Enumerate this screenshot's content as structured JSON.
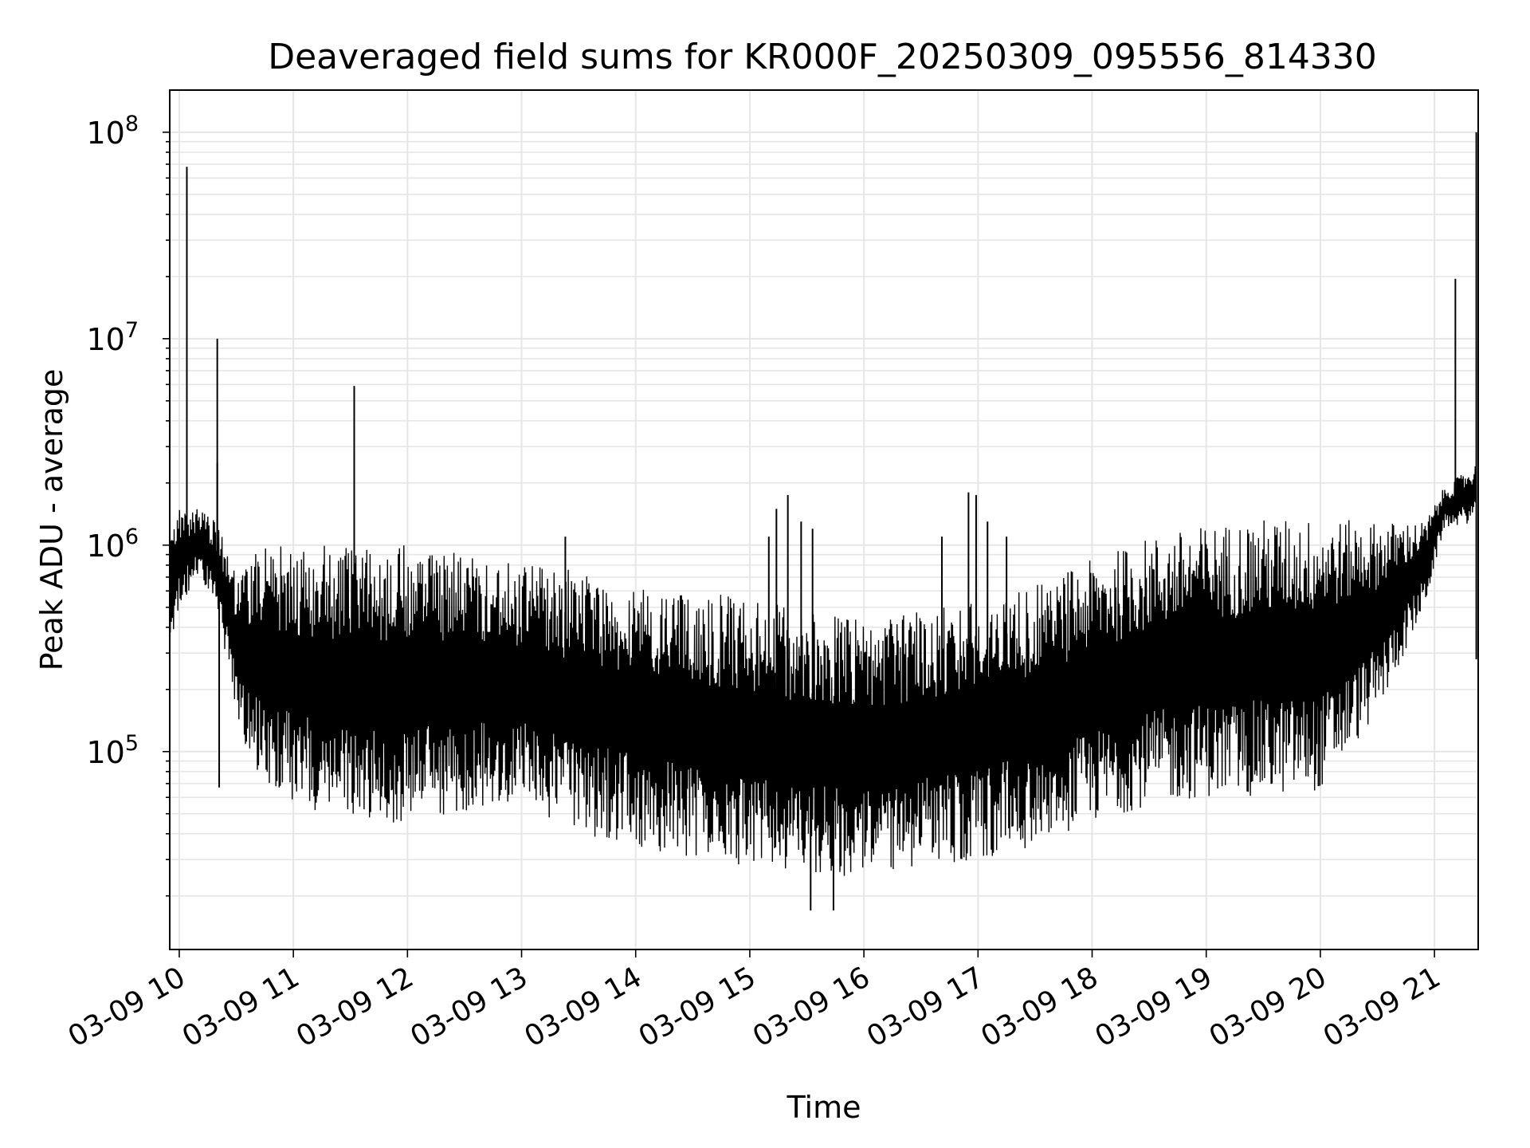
{
  "chart_data": {
    "type": "line",
    "title": "Deaveraged field sums for KR000F_20250309_095556_814330",
    "xlabel": "Time",
    "ylabel": "Peak ADU - average",
    "yscale": "log",
    "ylim": [
      11000,
      160000000
    ],
    "xlim": [
      "2025-03-09 09:55",
      "2025-03-09 21:23"
    ],
    "grid": true,
    "x_ticks": [
      {
        "t": "2025-03-09 10:00",
        "label": "03-09 10"
      },
      {
        "t": "2025-03-09 11:00",
        "label": "03-09 11"
      },
      {
        "t": "2025-03-09 12:00",
        "label": "03-09 12"
      },
      {
        "t": "2025-03-09 13:00",
        "label": "03-09 13"
      },
      {
        "t": "2025-03-09 14:00",
        "label": "03-09 14"
      },
      {
        "t": "2025-03-09 15:00",
        "label": "03-09 15"
      },
      {
        "t": "2025-03-09 16:00",
        "label": "03-09 16"
      },
      {
        "t": "2025-03-09 17:00",
        "label": "03-09 17"
      },
      {
        "t": "2025-03-09 18:00",
        "label": "03-09 18"
      },
      {
        "t": "2025-03-09 19:00",
        "label": "03-09 19"
      },
      {
        "t": "2025-03-09 20:00",
        "label": "03-09 20"
      },
      {
        "t": "2025-03-09 21:00",
        "label": "03-09 21"
      }
    ],
    "y_ticks": [
      {
        "value": 100000,
        "base": "10",
        "exp": "5"
      },
      {
        "value": 1000000,
        "base": "10",
        "exp": "6"
      },
      {
        "value": 10000000,
        "base": "10",
        "exp": "7"
      },
      {
        "value": 100000000,
        "base": "10",
        "exp": "8"
      }
    ],
    "series": [
      {
        "color": "#000000",
        "envelope": [
          {
            "t": "2025-03-09 09:55",
            "low": 300000,
            "high": 1300000
          },
          {
            "t": "2025-03-09 10:00",
            "low": 500000,
            "high": 1500000
          },
          {
            "t": "2025-03-09 10:10",
            "low": 700000,
            "high": 1500000
          },
          {
            "t": "2025-03-09 10:20",
            "low": 500000,
            "high": 1300000
          },
          {
            "t": "2025-03-09 10:30",
            "low": 150000,
            "high": 700000
          },
          {
            "t": "2025-03-09 10:40",
            "low": 75000,
            "high": 1000000
          },
          {
            "t": "2025-03-09 11:00",
            "low": 55000,
            "high": 1000000
          },
          {
            "t": "2025-03-09 11:30",
            "low": 45000,
            "high": 1000000
          },
          {
            "t": "2025-03-09 12:00",
            "low": 45000,
            "high": 1000000
          },
          {
            "t": "2025-03-09 12:30",
            "low": 50000,
            "high": 900000
          },
          {
            "t": "2025-03-09 13:00",
            "low": 55000,
            "high": 850000
          },
          {
            "t": "2025-03-09 13:30",
            "low": 40000,
            "high": 750000
          },
          {
            "t": "2025-03-09 14:00",
            "low": 35000,
            "high": 650000
          },
          {
            "t": "2025-03-09 14:30",
            "low": 30000,
            "high": 600000
          },
          {
            "t": "2025-03-09 15:00",
            "low": 27000,
            "high": 550000
          },
          {
            "t": "2025-03-09 15:30",
            "low": 25000,
            "high": 480000
          },
          {
            "t": "2025-03-09 16:00",
            "low": 25000,
            "high": 450000
          },
          {
            "t": "2025-03-09 16:30",
            "low": 27000,
            "high": 480000
          },
          {
            "t": "2025-03-09 17:00",
            "low": 30000,
            "high": 550000
          },
          {
            "t": "2025-03-09 17:30",
            "low": 35000,
            "high": 650000
          },
          {
            "t": "2025-03-09 18:00",
            "low": 45000,
            "high": 850000
          },
          {
            "t": "2025-03-09 18:30",
            "low": 55000,
            "high": 1100000
          },
          {
            "t": "2025-03-09 19:00",
            "low": 60000,
            "high": 1250000
          },
          {
            "t": "2025-03-09 19:30",
            "low": 60000,
            "high": 1350000
          },
          {
            "t": "2025-03-09 20:00",
            "low": 65000,
            "high": 1350000
          },
          {
            "t": "2025-03-09 20:30",
            "low": 150000,
            "high": 1300000
          },
          {
            "t": "2025-03-09 20:55",
            "low": 500000,
            "high": 1300000
          },
          {
            "t": "2025-03-09 21:05",
            "low": 1200000,
            "high": 1900000
          },
          {
            "t": "2025-03-09 21:22",
            "low": 1300000,
            "high": 2500000
          }
        ],
        "spikes": [
          {
            "t": "2025-03-09 10:04",
            "value": 68000000
          },
          {
            "t": "2025-03-09 10:20",
            "value": 10000000
          },
          {
            "t": "2025-03-09 10:21",
            "value": 67000
          },
          {
            "t": "2025-03-09 10:20",
            "value": 2500000
          },
          {
            "t": "2025-03-09 11:32",
            "value": 5900000
          },
          {
            "t": "2025-03-09 13:23",
            "value": 1100000
          },
          {
            "t": "2025-03-09 14:23",
            "value": 130000
          },
          {
            "t": "2025-03-09 15:10",
            "value": 1100000
          },
          {
            "t": "2025-03-09 15:14",
            "value": 1500000
          },
          {
            "t": "2025-03-09 15:20",
            "value": 1750000
          },
          {
            "t": "2025-03-09 15:27",
            "value": 1300000
          },
          {
            "t": "2025-03-09 15:33",
            "value": 1200000
          },
          {
            "t": "2025-03-09 15:32",
            "value": 17000
          },
          {
            "t": "2025-03-09 15:44",
            "value": 17000
          },
          {
            "t": "2025-03-09 16:41",
            "value": 1100000
          },
          {
            "t": "2025-03-09 16:55",
            "value": 1800000
          },
          {
            "t": "2025-03-09 16:59",
            "value": 1750000
          },
          {
            "t": "2025-03-09 17:05",
            "value": 1300000
          },
          {
            "t": "2025-03-09 17:15",
            "value": 1100000
          },
          {
            "t": "2025-03-09 19:59",
            "value": 68000
          },
          {
            "t": "2025-03-09 21:11",
            "value": 19500000
          },
          {
            "t": "2025-03-09 21:22",
            "value": 100000000
          },
          {
            "t": "2025-03-09 21:22",
            "value": 280000
          }
        ]
      }
    ]
  }
}
